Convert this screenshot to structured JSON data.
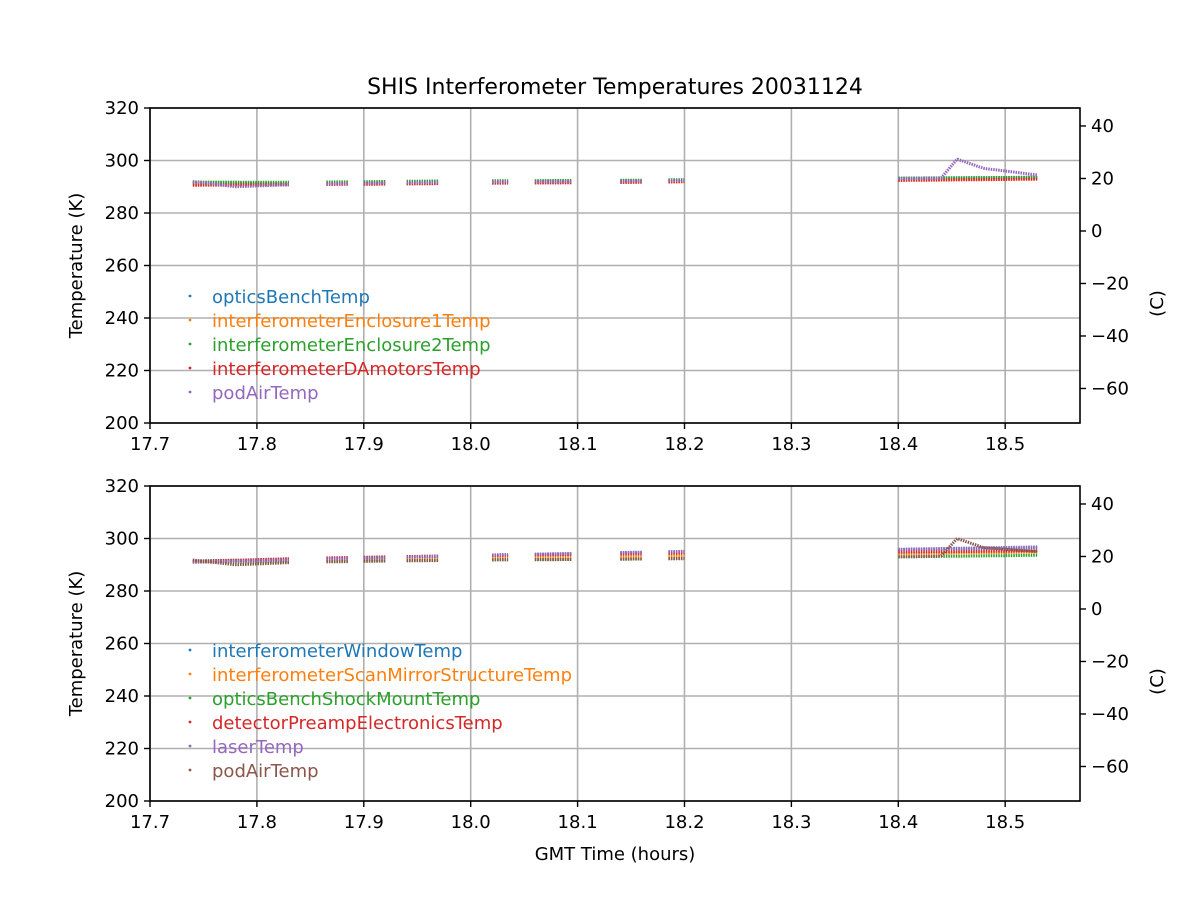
{
  "figure": {
    "title": "SHIS Interferometer Temperatures 20031124"
  },
  "chart_data": [
    {
      "type": "scatter",
      "title": "SHIS Interferometer Temperatures 20031124",
      "xlabel": "",
      "ylabel": "Temperature (K)",
      "ylabel_right": "(C)",
      "xlim": [
        17.7,
        18.57
      ],
      "ylim": [
        200,
        320
      ],
      "ylim_right": [
        -73.15,
        46.85
      ],
      "xticks": [
        "17.7",
        "17.8",
        "17.9",
        "18.0",
        "18.1",
        "18.2",
        "18.3",
        "18.4",
        "18.5"
      ],
      "yticks": [
        "200",
        "220",
        "240",
        "260",
        "280",
        "300",
        "320"
      ],
      "yticks_right": [
        "−60",
        "−40",
        "−20",
        "0",
        "20",
        "40"
      ],
      "grid": true,
      "legend_position": "lower-left",
      "segments": [
        [
          17.74,
          17.83
        ],
        [
          17.865,
          17.885
        ],
        [
          17.9,
          17.92
        ],
        [
          17.94,
          17.97
        ],
        [
          18.02,
          18.035
        ],
        [
          18.06,
          18.095
        ],
        [
          18.14,
          18.16
        ],
        [
          18.185,
          18.2
        ],
        [
          18.4,
          18.53
        ]
      ],
      "series": [
        {
          "name": "opticsBenchTemp",
          "color": "#1f77b4",
          "points": [
            [
              17.74,
              291.5
            ],
            [
              17.83,
              291.2
            ],
            [
              17.865,
              291.3
            ],
            [
              17.92,
              291.5
            ],
            [
              17.97,
              291.8
            ],
            [
              18.03,
              292.0
            ],
            [
              18.095,
              292.1
            ],
            [
              18.16,
              292.3
            ],
            [
              18.2,
              292.6
            ],
            [
              18.4,
              293.2
            ],
            [
              18.53,
              293.6
            ]
          ]
        },
        {
          "name": "interferometerEnclosure1Temp",
          "color": "#ff7f0e",
          "points": [
            [
              17.74,
              290.9
            ],
            [
              17.83,
              290.9
            ],
            [
              17.865,
              291.0
            ],
            [
              17.92,
              291.1
            ],
            [
              17.97,
              291.3
            ],
            [
              18.03,
              291.5
            ],
            [
              18.095,
              291.6
            ],
            [
              18.16,
              291.8
            ],
            [
              18.2,
              292.0
            ],
            [
              18.4,
              292.6
            ],
            [
              18.53,
              293.0
            ]
          ]
        },
        {
          "name": "interferometerEnclosure2Temp",
          "color": "#2ca02c",
          "points": [
            [
              17.74,
              291.8
            ],
            [
              17.83,
              291.7
            ],
            [
              17.865,
              291.8
            ],
            [
              17.92,
              292.0
            ],
            [
              17.97,
              292.2
            ],
            [
              18.03,
              292.3
            ],
            [
              18.095,
              292.4
            ],
            [
              18.16,
              292.5
            ],
            [
              18.2,
              292.7
            ],
            [
              18.4,
              293.3
            ],
            [
              18.53,
              293.6
            ]
          ]
        },
        {
          "name": "interferometerDAmotorsTemp",
          "color": "#d62728",
          "points": [
            [
              17.74,
              290.6
            ],
            [
              17.83,
              290.7
            ],
            [
              17.865,
              290.9
            ],
            [
              17.92,
              291.0
            ],
            [
              17.97,
              291.2
            ],
            [
              18.03,
              291.4
            ],
            [
              18.095,
              291.5
            ],
            [
              18.16,
              291.7
            ],
            [
              18.2,
              291.9
            ],
            [
              18.4,
              292.4
            ],
            [
              18.53,
              292.9
            ]
          ]
        },
        {
          "name": "podAirTemp",
          "color": "#9467bd",
          "points": [
            [
              17.74,
              292.0
            ],
            [
              17.78,
              290.0
            ],
            [
              17.83,
              290.8
            ],
            [
              17.865,
              291.1
            ],
            [
              17.92,
              291.4
            ],
            [
              17.97,
              291.6
            ],
            [
              18.03,
              291.9
            ],
            [
              18.095,
              292.0
            ],
            [
              18.16,
              292.2
            ],
            [
              18.2,
              292.4
            ],
            [
              18.4,
              293.0
            ],
            [
              18.44,
              293.3
            ],
            [
              18.455,
              300.5
            ],
            [
              18.48,
              297.0
            ],
            [
              18.53,
              294.5
            ]
          ]
        }
      ]
    },
    {
      "type": "scatter",
      "title": "",
      "xlabel": "GMT Time (hours)",
      "ylabel": "Temperature (K)",
      "ylabel_right": "(C)",
      "xlim": [
        17.7,
        18.57
      ],
      "ylim": [
        200,
        320
      ],
      "ylim_right": [
        -73.15,
        46.85
      ],
      "xticks": [
        "17.7",
        "17.8",
        "17.9",
        "18.0",
        "18.1",
        "18.2",
        "18.3",
        "18.4",
        "18.5"
      ],
      "yticks": [
        "200",
        "220",
        "240",
        "260",
        "280",
        "300",
        "320"
      ],
      "yticks_right": [
        "−60",
        "−40",
        "−20",
        "0",
        "20",
        "40"
      ],
      "grid": true,
      "legend_position": "lower-left",
      "segments": [
        [
          17.74,
          17.83
        ],
        [
          17.865,
          17.885
        ],
        [
          17.9,
          17.92
        ],
        [
          17.94,
          17.97
        ],
        [
          18.02,
          18.035
        ],
        [
          18.06,
          18.095
        ],
        [
          18.14,
          18.16
        ],
        [
          18.185,
          18.2
        ],
        [
          18.4,
          18.53
        ]
      ],
      "series": [
        {
          "name": "interferometerWindowTemp",
          "color": "#1f77b4",
          "points": [
            [
              17.74,
              291.5
            ],
            [
              17.83,
              292.0
            ],
            [
              17.865,
              292.3
            ],
            [
              17.92,
              292.8
            ],
            [
              17.97,
              293.3
            ],
            [
              18.03,
              293.8
            ],
            [
              18.095,
              294.2
            ],
            [
              18.16,
              294.7
            ],
            [
              18.2,
              295.0
            ],
            [
              18.4,
              295.8
            ],
            [
              18.53,
              296.5
            ]
          ]
        },
        {
          "name": "interferometerScanMirrorStructureTemp",
          "color": "#ff7f0e",
          "points": [
            [
              17.74,
              291.3
            ],
            [
              17.83,
              291.6
            ],
            [
              17.865,
              291.8
            ],
            [
              17.92,
              292.2
            ],
            [
              17.97,
              292.5
            ],
            [
              18.03,
              292.8
            ],
            [
              18.095,
              293.0
            ],
            [
              18.16,
              293.2
            ],
            [
              18.2,
              293.4
            ],
            [
              18.4,
              294.2
            ],
            [
              18.53,
              294.8
            ]
          ]
        },
        {
          "name": "opticsBenchShockMountTemp",
          "color": "#2ca02c",
          "points": [
            [
              17.74,
              291.0
            ],
            [
              17.83,
              291.1
            ],
            [
              17.865,
              291.3
            ],
            [
              17.92,
              291.5
            ],
            [
              17.97,
              291.7
            ],
            [
              18.03,
              291.9
            ],
            [
              18.095,
              292.0
            ],
            [
              18.16,
              292.2
            ],
            [
              18.2,
              292.3
            ],
            [
              18.4,
              293.0
            ],
            [
              18.53,
              293.6
            ]
          ]
        },
        {
          "name": "detectorPreampElectronicsTemp",
          "color": "#d62728",
          "points": [
            [
              17.74,
              291.2
            ],
            [
              17.83,
              292.3
            ],
            [
              17.865,
              292.6
            ],
            [
              17.92,
              293.0
            ],
            [
              17.97,
              293.3
            ],
            [
              18.03,
              293.6
            ],
            [
              18.095,
              293.9
            ],
            [
              18.16,
              294.2
            ],
            [
              18.2,
              294.5
            ],
            [
              18.4,
              294.8
            ],
            [
              18.53,
              295.3
            ]
          ]
        },
        {
          "name": "laserTemp",
          "color": "#9467bd",
          "points": [
            [
              17.74,
              291.0
            ],
            [
              17.83,
              291.8
            ],
            [
              17.865,
              292.2
            ],
            [
              17.92,
              292.7
            ],
            [
              17.97,
              293.2
            ],
            [
              18.03,
              293.8
            ],
            [
              18.095,
              294.3
            ],
            [
              18.16,
              294.8
            ],
            [
              18.2,
              295.1
            ],
            [
              18.4,
              295.9
            ],
            [
              18.53,
              296.8
            ]
          ]
        },
        {
          "name": "podAirTemp",
          "color": "#8c564b",
          "points": [
            [
              17.74,
              291.8
            ],
            [
              17.78,
              290.0
            ],
            [
              17.83,
              290.8
            ],
            [
              17.865,
              291.1
            ],
            [
              17.92,
              291.4
            ],
            [
              17.97,
              291.6
            ],
            [
              18.03,
              291.9
            ],
            [
              18.095,
              292.0
            ],
            [
              18.16,
              292.2
            ],
            [
              18.2,
              292.4
            ],
            [
              18.4,
              293.0
            ],
            [
              18.44,
              293.3
            ],
            [
              18.455,
              300.0
            ],
            [
              18.48,
              296.5
            ],
            [
              18.53,
              295.0
            ]
          ]
        }
      ]
    }
  ]
}
